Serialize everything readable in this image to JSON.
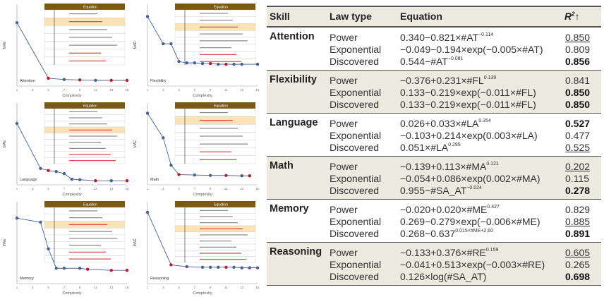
{
  "table": {
    "headers": {
      "skill": "Skill",
      "law_type": "Law type",
      "equation": "Equation",
      "r2": "R",
      "r2_sup": "2",
      "r2_arrow": "↑"
    },
    "blocks": [
      {
        "skill": "Attention",
        "shaded": false,
        "rows": [
          {
            "law": "Power",
            "eq": "0.340−0.821×#AT",
            "sup": "−0.114",
            "eq_tail": "",
            "r2": "0.850",
            "bold": false,
            "underline": true
          },
          {
            "law": "Exponential",
            "eq": "−0.049−0.194×exp(−0.005×#AT)",
            "sup": "",
            "eq_tail": "",
            "r2": "0.809",
            "bold": false,
            "underline": false
          },
          {
            "law": "Discovered",
            "eq": "0.544−#AT",
            "sup": "−0.081",
            "eq_tail": "",
            "r2": "0.856",
            "bold": true,
            "underline": false
          }
        ]
      },
      {
        "skill": "Flexibility",
        "shaded": true,
        "rows": [
          {
            "law": "Power",
            "eq": "−0.376+0.231×#FL",
            "sup": "0.139",
            "eq_tail": "",
            "r2": "0.841",
            "bold": false,
            "underline": false
          },
          {
            "law": "Exponential",
            "eq": "0.133−0.219×exp(−0.011×#FL)",
            "sup": "",
            "eq_tail": "",
            "r2": "0.850",
            "bold": true,
            "underline": false
          },
          {
            "law": "Discovered",
            "eq": "0.133−0.219×exp(−0.011×#FL)",
            "sup": "",
            "eq_tail": "",
            "r2": "0.850",
            "bold": true,
            "underline": false
          }
        ]
      },
      {
        "skill": "Language",
        "shaded": false,
        "rows": [
          {
            "law": "Power",
            "eq": "0.026+0.033×#LA",
            "sup": "0.354",
            "eq_tail": "",
            "r2": "0.527",
            "bold": true,
            "underline": false
          },
          {
            "law": "Exponential",
            "eq": "−0.103+0.214×exp(0.003×#LA)",
            "sup": "",
            "eq_tail": "",
            "r2": "0.477",
            "bold": false,
            "underline": false
          },
          {
            "law": "Discovered",
            "eq": "0.051×#LA",
            "sup": "0.295",
            "eq_tail": "",
            "r2": "0.525",
            "bold": false,
            "underline": true
          }
        ]
      },
      {
        "skill": "Math",
        "shaded": true,
        "rows": [
          {
            "law": "Power",
            "eq": "−0.139+0.113×#MA",
            "sup": "0.121",
            "eq_tail": "",
            "r2": "0.202",
            "bold": false,
            "underline": true
          },
          {
            "law": "Exponential",
            "eq": "−0.054+0.086×exp(0.002×#MA)",
            "sup": "",
            "eq_tail": "",
            "r2": "0.115",
            "bold": false,
            "underline": false
          },
          {
            "law": "Discovered",
            "eq": "0.955−#SA_AT",
            "sup": "−0.024",
            "eq_tail": "",
            "r2": "0.278",
            "bold": true,
            "underline": false
          }
        ]
      },
      {
        "skill": "Memory",
        "shaded": false,
        "rows": [
          {
            "law": "Power",
            "eq": "−0.020+0.020×#ME",
            "sup": "0.427",
            "eq_tail": "",
            "r2": "0.829",
            "bold": false,
            "underline": false
          },
          {
            "law": "Exponential",
            "eq": "0.269−0.279×exp(−0.006×#ME)",
            "sup": "",
            "eq_tail": "",
            "r2": "0.885",
            "bold": false,
            "underline": true
          },
          {
            "law": "Discovered",
            "eq": "0.268−0.637",
            "sup": "0.015×#ME+2.60",
            "eq_tail": "",
            "r2": "0.891",
            "bold": true,
            "underline": false
          }
        ]
      },
      {
        "skill": "Reasoning",
        "shaded": true,
        "rows": [
          {
            "law": "Power",
            "eq": "−0.133+0.376×#RE",
            "sup": "0.159",
            "eq_tail": "",
            "r2": "0.605",
            "bold": false,
            "underline": true
          },
          {
            "law": "Exponential",
            "eq": "−0.041+0.513×exp(−0.003×#RE)",
            "sup": "",
            "eq_tail": "",
            "r2": "0.265",
            "bold": false,
            "underline": false
          },
          {
            "law": "Discovered",
            "eq": "0.126×log(#SA_AT)",
            "sup": "",
            "eq_tail": "",
            "r2": "0.698",
            "bold": true,
            "underline": false
          }
        ]
      }
    ]
  },
  "colors": {
    "line": "#4a5f94",
    "point": "#4a5f94",
    "highlight_point": "#c0182a",
    "table_header": "#7a5a12",
    "highlight_row": "#fbe3b5",
    "shade": "#eceadf"
  },
  "chart_data": [
    {
      "type": "line",
      "label": "Attention",
      "xlabel": "Complexity",
      "ylabel": "MAE",
      "equation_header": "Equation",
      "xlim": [
        1,
        15
      ],
      "ylim": [
        0.01,
        0.05
      ],
      "xticks": [
        "1",
        "3",
        "5",
        "7",
        "9",
        "11",
        "13",
        "15"
      ],
      "x": [
        1,
        5,
        7,
        9,
        11,
        13,
        15
      ],
      "y": [
        0.041,
        0.0138,
        0.0132,
        0.013,
        0.0128,
        0.0128,
        0.0128
      ],
      "highlight": [
        false,
        true,
        false,
        true,
        false,
        true,
        true
      ]
    },
    {
      "type": "line",
      "label": "Flexibility",
      "xlabel": "Complexity",
      "ylabel": "MAE",
      "equation_header": "Equation",
      "xlim": [
        1,
        15
      ],
      "ylim": [
        0.08,
        0.14
      ],
      "xticks": [
        "1",
        "3",
        "5",
        "7",
        "9",
        "11",
        "13",
        "15"
      ],
      "x": [
        1,
        3,
        4,
        5,
        6,
        7,
        8,
        9,
        10,
        11,
        12,
        13,
        15
      ],
      "y": [
        0.131,
        0.111,
        0.111,
        0.098,
        0.097,
        0.097,
        0.0965,
        0.0965,
        0.096,
        0.096,
        0.096,
        0.096,
        0.096
      ],
      "highlight": [
        false,
        false,
        false,
        false,
        false,
        false,
        false,
        true,
        false,
        true,
        false,
        false,
        false
      ]
    },
    {
      "type": "line",
      "label": "Language",
      "xlabel": "Complexity",
      "ylabel": "MAE",
      "equation_header": "Equation",
      "xlim": [
        1,
        15
      ],
      "ylim": [
        0.024,
        0.04
      ],
      "xticks": [
        "1",
        "3",
        "5",
        "7",
        "9",
        "11",
        "13",
        "15"
      ],
      "x": [
        1,
        4,
        5,
        6,
        7,
        8,
        9,
        11,
        13,
        15
      ],
      "y": [
        0.036,
        0.0272,
        0.0268,
        0.0266,
        0.0262,
        0.0251,
        0.025,
        0.0248,
        0.0248,
        0.0248
      ],
      "highlight": [
        false,
        false,
        true,
        false,
        false,
        false,
        false,
        true,
        false,
        true
      ]
    },
    {
      "type": "line",
      "label": "Math",
      "xlabel": "Complexity",
      "ylabel": "MAE",
      "equation_header": "Equation",
      "xlim": [
        1,
        15
      ],
      "ylim": [
        0.017,
        0.037
      ],
      "xticks": [
        "1",
        "3",
        "5",
        "7",
        "9",
        "11",
        "13",
        "15"
      ],
      "x": [
        1,
        3,
        4,
        5,
        7,
        9,
        11,
        13,
        14
      ],
      "y": [
        0.0345,
        0.0285,
        0.0218,
        0.0195,
        0.0194,
        0.0193,
        0.0193,
        0.0192,
        0.0192
      ],
      "highlight": [
        false,
        false,
        false,
        true,
        false,
        false,
        true,
        false,
        true
      ]
    },
    {
      "type": "line",
      "label": "Memory",
      "xlabel": "Complexity",
      "ylabel": "MAE",
      "equation_header": "Equation",
      "xlim": [
        1,
        15
      ],
      "ylim": [
        0.18,
        0.26
      ],
      "xticks": [
        "1",
        "3",
        "5",
        "7",
        "9",
        "11",
        "13",
        "15"
      ],
      "x": [
        1,
        4,
        5,
        6,
        7,
        9,
        10,
        13,
        15
      ],
      "y": [
        0.244,
        0.24,
        0.214,
        0.195,
        0.195,
        0.195,
        0.194,
        0.193,
        0.193
      ],
      "highlight": [
        false,
        false,
        false,
        false,
        false,
        false,
        true,
        true,
        true
      ]
    },
    {
      "type": "line",
      "label": "Reasoning",
      "xlabel": "Complexity",
      "ylabel": "MAE",
      "equation_header": "Equation",
      "xlim": [
        1,
        15
      ],
      "ylim": [
        0.03,
        0.1
      ],
      "xticks": [
        "1",
        "3",
        "5",
        "7",
        "9",
        "11",
        "13",
        "15"
      ],
      "x": [
        1,
        4,
        6,
        8,
        9,
        10,
        11,
        12,
        13,
        14,
        15
      ],
      "y": [
        0.091,
        0.046,
        0.0445,
        0.044,
        0.044,
        0.044,
        0.044,
        0.044,
        0.0435,
        0.0435,
        0.0435
      ],
      "highlight": [
        false,
        true,
        false,
        false,
        false,
        false,
        true,
        false,
        false,
        false,
        false
      ]
    }
  ]
}
